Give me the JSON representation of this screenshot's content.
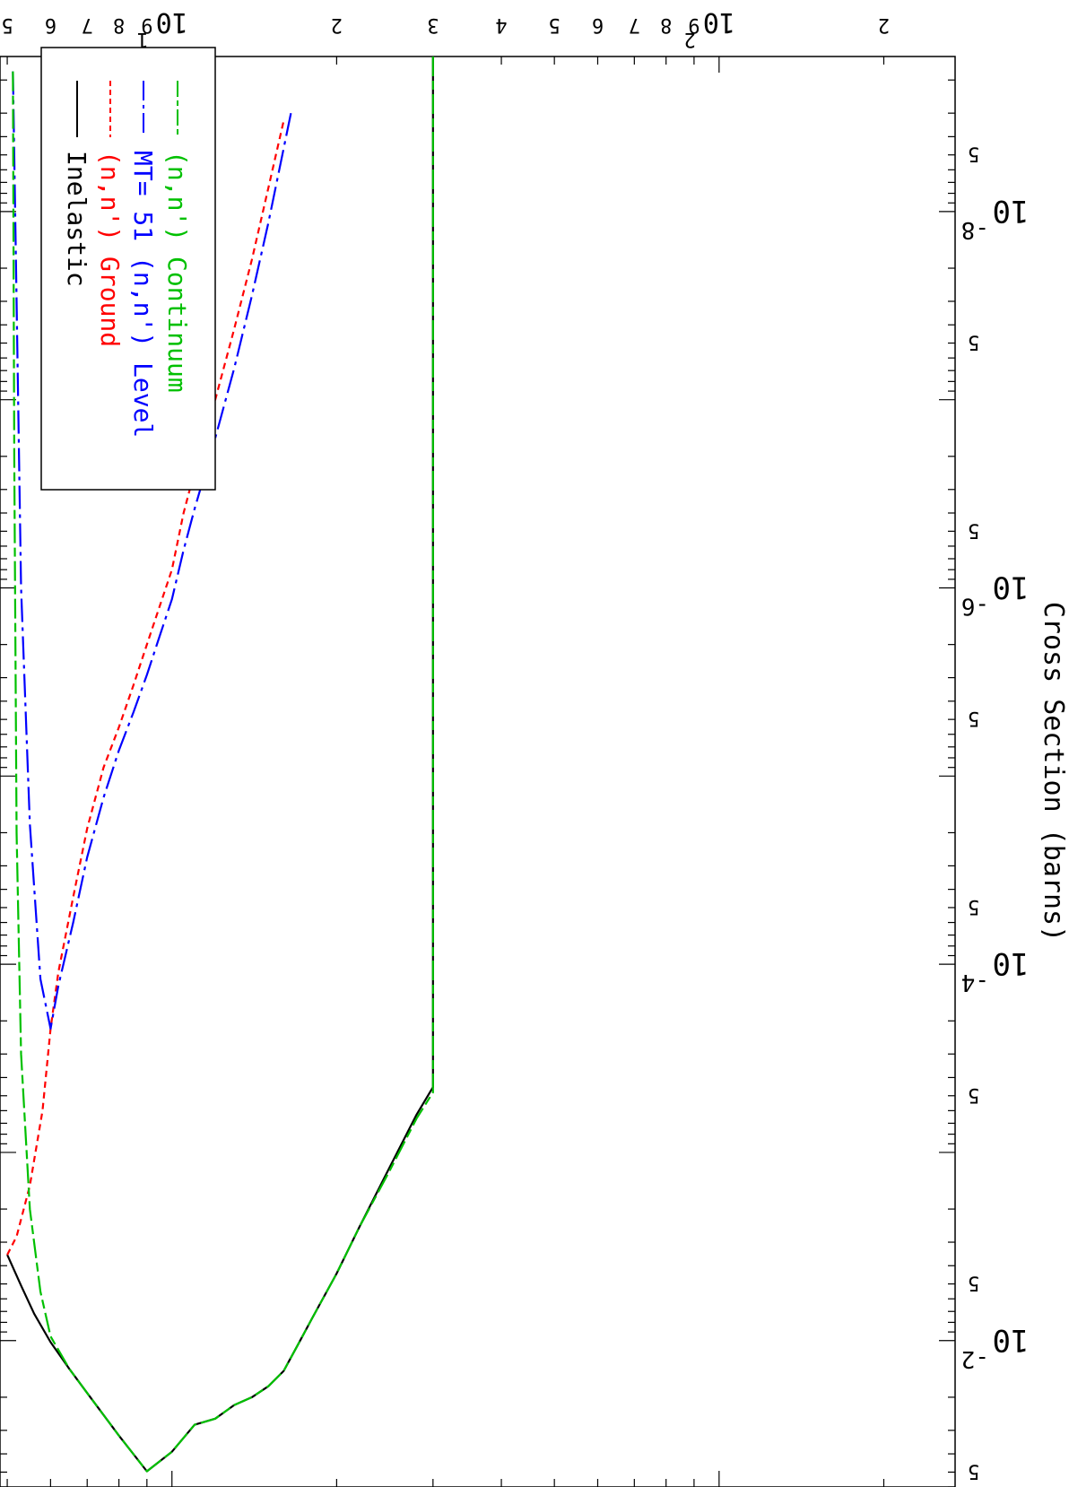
{
  "chart_data": {
    "type": "line",
    "orientation": "rotated-180",
    "title": "",
    "xlabel": "",
    "ylabel": "Cross Section (barns)",
    "xscale": "log",
    "yscale": "log",
    "xlim": [
      4.85,
      270
    ],
    "ylim": [
      1.5e-09,
      0.06
    ],
    "grid": false,
    "legend_position": "top-right of rotated page",
    "x_ticks": [
      {
        "value": 5,
        "label": "5"
      },
      {
        "value": 6,
        "label": "6"
      },
      {
        "value": 7,
        "label": "7"
      },
      {
        "value": 8,
        "label": "8"
      },
      {
        "value": 9,
        "label": "9"
      },
      {
        "value": 10,
        "label": "10",
        "exp": "1"
      },
      {
        "value": 20,
        "label": "2"
      },
      {
        "value": 30,
        "label": "3"
      },
      {
        "value": 40,
        "label": "4"
      },
      {
        "value": 50,
        "label": "5"
      },
      {
        "value": 60,
        "label": "6"
      },
      {
        "value": 70,
        "label": "7"
      },
      {
        "value": 80,
        "label": "8"
      },
      {
        "value": 90,
        "label": "9"
      },
      {
        "value": 100,
        "label": "10",
        "exp": "2"
      },
      {
        "value": 200,
        "label": "2"
      }
    ],
    "y_ticks": [
      {
        "value": 0.05,
        "label": "5"
      },
      {
        "value": 0.01,
        "label": "10",
        "exp": "-2"
      },
      {
        "value": 0.005,
        "label": "5"
      },
      {
        "value": 0.0005,
        "label": "5"
      },
      {
        "value": 0.0001,
        "label": "10",
        "exp": "-4"
      },
      {
        "value": 5e-05,
        "label": "5"
      },
      {
        "value": 5e-06,
        "label": "5"
      },
      {
        "value": 1e-06,
        "label": "10",
        "exp": "-6"
      },
      {
        "value": 5e-07,
        "label": "5"
      },
      {
        "value": 5e-08,
        "label": "5"
      },
      {
        "value": 1e-08,
        "label": "10",
        "exp": "-8"
      },
      {
        "value": 5e-09,
        "label": "5"
      }
    ],
    "series": [
      {
        "name": "Inelastic",
        "color": "#000000",
        "dash": "",
        "x": [
          5.0,
          5.3,
          5.6,
          6.0,
          6.5,
          7.0,
          8.0,
          9.0,
          10.0,
          11.0,
          12.0,
          13.0,
          14.0,
          15.0,
          16.0,
          17.0,
          18.0,
          20.0,
          22.0,
          25.0,
          28.0,
          30.0,
          30.0
        ],
        "y": [
          0.0035,
          0.0051,
          0.0072,
          0.0102,
          0.0142,
          0.019,
          0.032,
          0.0495,
          0.039,
          0.028,
          0.026,
          0.022,
          0.02,
          0.0175,
          0.0145,
          0.0105,
          0.0077,
          0.0044,
          0.0025,
          0.0012,
          0.00063,
          0.00045,
          1.5e-09
        ]
      },
      {
        "name": "(n,n') Ground",
        "color": "#ff0000",
        "dash": "7,5",
        "x": [
          5.0,
          5.2,
          5.5,
          5.8,
          6.0,
          6.2,
          6.6,
          7.0,
          7.5,
          8.0,
          8.5,
          9.0,
          9.5,
          10.0,
          10.5,
          11.0,
          12.0,
          13.0,
          14.0,
          15.0,
          16.0
        ],
        "y": [
          0.0035,
          0.0028,
          0.0015,
          0.0006,
          0.00022,
          0.00011,
          4.4e-05,
          1.9e-05,
          9e-06,
          5.5e-06,
          3.3e-06,
          2e-06,
          1.25e-06,
          8e-07,
          4e-07,
          2.4e-07,
          1e-07,
          4.2e-08,
          1.8e-08,
          7.5e-09,
          3.3e-09
        ]
      },
      {
        "name": "MT= 51 (n,n') Level",
        "color": "#0000ff",
        "dash": "26,6,4,6",
        "x": [
          5.12,
          5.2,
          5.3,
          5.5,
          5.75,
          6.0,
          6.2,
          6.6,
          7.0,
          7.5,
          8.0,
          8.5,
          9.0,
          9.5,
          10.0,
          10.5,
          11.0,
          12.0,
          13.0,
          14.0,
          15.0,
          16.5
        ],
        "y": [
          1.8e-09,
          3e-08,
          1e-06,
          1.8e-05,
          0.00012,
          0.00022,
          0.00013,
          6e-05,
          2.7e-05,
          1.3e-05,
          7.3e-06,
          4.6e-06,
          2.9e-06,
          1.8e-06,
          1.15e-06,
          6.3e-07,
          3.8e-07,
          1.6e-07,
          6.8e-08,
          2.8e-08,
          1.15e-08,
          3e-09
        ]
      },
      {
        "name": "(n,n') Continuum",
        "color": "#00c000",
        "dash": "22,5,10,5",
        "x": [
          5.12,
          5.15,
          5.2,
          5.3,
          5.5,
          5.75,
          6.0,
          6.5,
          7.0,
          8.0,
          9.0,
          10.0,
          11.0,
          12.0,
          13.0,
          14.0,
          15.0,
          16.0,
          17.0,
          18.0,
          20.0,
          22.0,
          25.0,
          28.0,
          30.0,
          30.0
        ],
        "y": [
          1.8e-09,
          2e-07,
          2e-05,
          0.0003,
          0.002,
          0.0055,
          0.0095,
          0.0142,
          0.019,
          0.032,
          0.0495,
          0.039,
          0.028,
          0.026,
          0.022,
          0.02,
          0.0175,
          0.0145,
          0.0105,
          0.0077,
          0.0044,
          0.0025,
          0.00125,
          0.00066,
          0.00048,
          1.5e-09
        ]
      }
    ]
  }
}
